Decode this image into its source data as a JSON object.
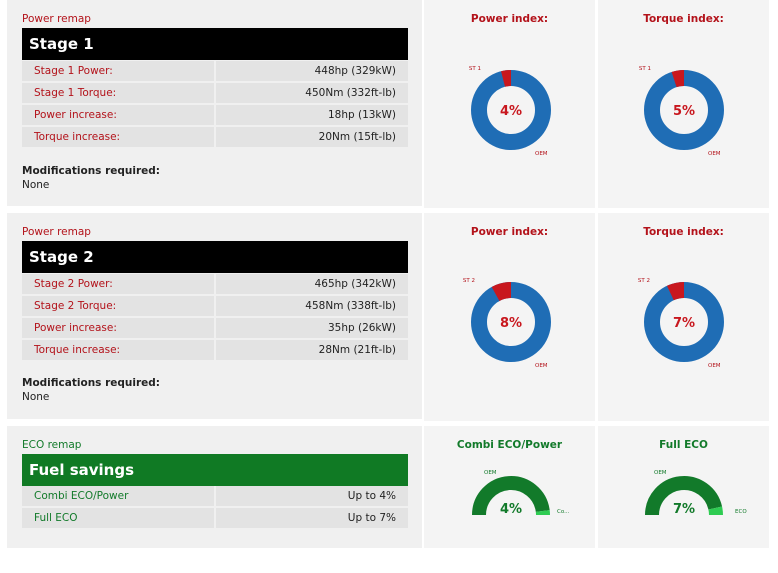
{
  "stage1": {
    "section_label": "Power remap",
    "banner": "Stage 1",
    "rows": [
      {
        "label": "Stage 1 Power:",
        "value": "448hp (329kW)"
      },
      {
        "label": "Stage 1 Torque:",
        "value": "450Nm (332ft-lb)"
      },
      {
        "label": "Power increase:",
        "value": "18hp (13kW)"
      },
      {
        "label": "Torque increase:",
        "value": "20Nm (15ft-lb)"
      }
    ],
    "mods_title": "Modifications required:",
    "mods_value": "None",
    "charts": [
      {
        "title": "Power index:",
        "percent_label": "4%",
        "value_pct": 4,
        "seg_label": "ST 1",
        "base_label": "OEM"
      },
      {
        "title": "Torque index:",
        "percent_label": "5%",
        "value_pct": 5,
        "seg_label": "ST 1",
        "base_label": "OEM"
      }
    ]
  },
  "stage2": {
    "section_label": "Power remap",
    "banner": "Stage 2",
    "rows": [
      {
        "label": "Stage 2 Power:",
        "value": "465hp (342kW)"
      },
      {
        "label": "Stage 2 Torque:",
        "value": "458Nm (338ft-lb)"
      },
      {
        "label": "Power increase:",
        "value": "35hp (26kW)"
      },
      {
        "label": "Torque increase:",
        "value": "28Nm (21ft-lb)"
      }
    ],
    "mods_title": "Modifications required:",
    "mods_value": "None",
    "charts": [
      {
        "title": "Power index:",
        "percent_label": "8%",
        "value_pct": 8,
        "seg_label": "ST 2",
        "base_label": "OEM"
      },
      {
        "title": "Torque index:",
        "percent_label": "7%",
        "value_pct": 7,
        "seg_label": "ST 2",
        "base_label": "OEM"
      }
    ]
  },
  "eco": {
    "section_label": "ECO remap",
    "banner": "Fuel savings",
    "rows": [
      {
        "label": "Combi ECO/Power",
        "value": "Up to 4%"
      },
      {
        "label": "Full ECO",
        "value": "Up to 7%"
      }
    ],
    "charts": [
      {
        "title": "Combi ECO/Power",
        "percent_label": "4%",
        "value_pct": 4,
        "base_label": "OEM",
        "seg_label": "Co..."
      },
      {
        "title": "Full ECO",
        "percent_label": "7%",
        "value_pct": 7,
        "base_label": "OEM",
        "seg_label": "ECO"
      }
    ]
  },
  "colors": {
    "power_red": "#b3121a",
    "donut_blue": "#1f6db5",
    "donut_red": "#c8171e",
    "eco_green": "#127a2a",
    "eco_light_green": "#2ecc52"
  }
}
